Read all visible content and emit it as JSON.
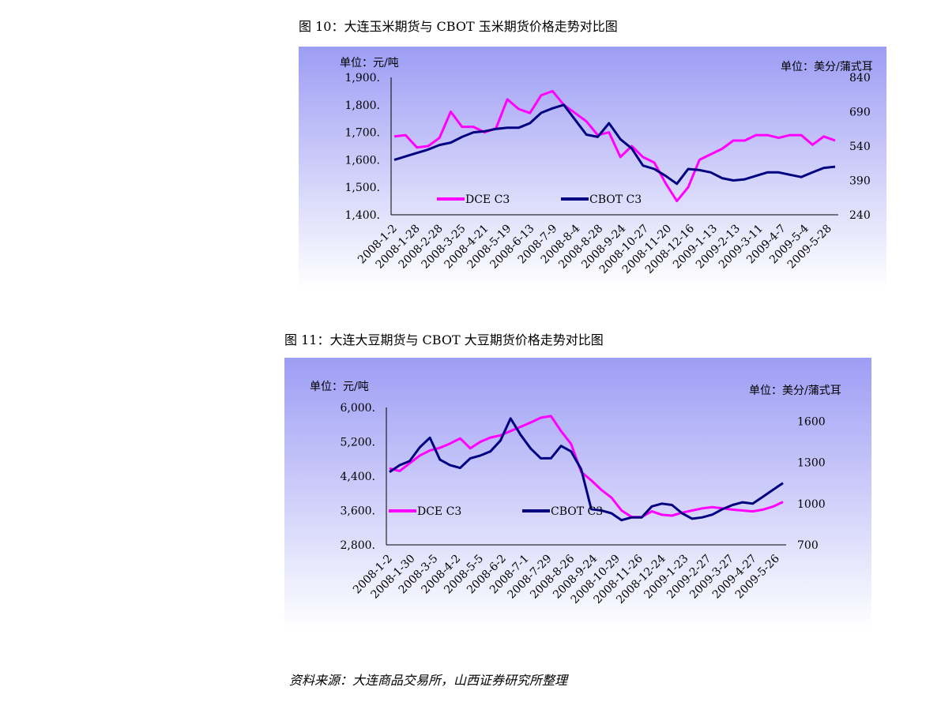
{
  "source_note": "资料来源：大连商品交易所，山西证券研究所整理",
  "chart_data": [
    {
      "type": "line",
      "figure_title": "图 10：大连玉米期货与 CBOT 玉米期货价格走势对比图",
      "y_left_unit": "单位：元/吨",
      "y_right_unit": "单位：美分/蒲式耳",
      "y_left_ticks": [
        "1,400.",
        "1,500.",
        "1,600.",
        "1,700.",
        "1,800.",
        "1,900."
      ],
      "y_right_ticks": [
        "240",
        "390",
        "540",
        "690",
        "840"
      ],
      "ylim_left": [
        1400,
        1900
      ],
      "ylim_right": [
        240,
        840
      ],
      "x_ticks": [
        "2008-1-2",
        "2008-1-28",
        "2008-2-28",
        "2008-3-25",
        "2008-4-21",
        "2008-5-19",
        "2008-6-13",
        "2008-7-9",
        "2008-8-4",
        "2008-8-28",
        "2008-9-24",
        "2008-10-27",
        "2008-11-20",
        "2008-12-16",
        "2009-1-13",
        "2009-2-13",
        "2009-3-11",
        "2009-4-7",
        "2009-5-4",
        "2009-5-28"
      ],
      "legend_placement": "inside-bottom-left",
      "colors": {
        "plot_bg_top": "#9d9df5",
        "plot_bg_bottom": "#ffffff"
      },
      "series": [
        {
          "name": "DCE C3",
          "axis": "left",
          "color": "#ff00ff",
          "values": [
            1685,
            1690,
            1645,
            1650,
            1680,
            1775,
            1720,
            1720,
            1700,
            1715,
            1820,
            1785,
            1770,
            1835,
            1850,
            1800,
            1770,
            1740,
            1690,
            1700,
            1610,
            1650,
            1610,
            1590,
            1515,
            1450,
            1500,
            1600,
            1620,
            1640,
            1670,
            1670,
            1690,
            1690,
            1680,
            1690,
            1690,
            1655,
            1685,
            1670
          ]
        },
        {
          "name": "CBOT C3",
          "axis": "right",
          "color": "#000080",
          "values": [
            480,
            495,
            510,
            525,
            545,
            555,
            580,
            600,
            605,
            615,
            620,
            620,
            640,
            685,
            705,
            720,
            655,
            590,
            580,
            640,
            570,
            530,
            455,
            440,
            410,
            375,
            440,
            435,
            425,
            400,
            390,
            395,
            410,
            425,
            425,
            415,
            405,
            425,
            445,
            450
          ]
        }
      ]
    },
    {
      "type": "line",
      "figure_title": "图 11：大连大豆期货与 CBOT 大豆期货价格走势对比图",
      "y_left_unit": "单位：元/吨",
      "y_right_unit": "单位：美分/蒲式耳",
      "y_left_ticks": [
        "2,800.",
        "3,600.",
        "4,400.",
        "5,200.",
        "6,000."
      ],
      "y_right_ticks": [
        "700",
        "1000",
        "1300",
        "1600"
      ],
      "ylim_left": [
        2800,
        6000
      ],
      "ylim_right": [
        700,
        1700
      ],
      "x_ticks": [
        "2008-1-2",
        "2008-1-30",
        "2008-3-5",
        "2008-4-2",
        "2008-5-5",
        "2008-6-2",
        "2008-7-1",
        "2008-7-29",
        "2008-8-26",
        "2008-9-24",
        "2008-10-29",
        "2008-11-26",
        "2008-12-24",
        "2009-1-23",
        "2009-2-27",
        "2009-3-27",
        "2009-4-27",
        "2009-5-26"
      ],
      "legend_placement": "inside-bottom-left",
      "colors": {
        "plot_bg_top": "#9d9df5",
        "plot_bg_bottom": "#ffffff"
      },
      "series": [
        {
          "name": "DCE C3",
          "axis": "left",
          "color": "#ff00ff",
          "values": [
            4580,
            4520,
            4700,
            4880,
            5000,
            5060,
            5160,
            5280,
            5050,
            5200,
            5300,
            5350,
            5450,
            5550,
            5650,
            5760,
            5800,
            5450,
            5150,
            4500,
            4300,
            4080,
            3900,
            3600,
            3450,
            3450,
            3580,
            3500,
            3480,
            3550,
            3600,
            3650,
            3680,
            3650,
            3620,
            3600,
            3580,
            3620,
            3690,
            3800
          ]
        },
        {
          "name": "CBOT C3",
          "axis": "right",
          "color": "#000080",
          "values": [
            1230,
            1280,
            1310,
            1410,
            1480,
            1320,
            1280,
            1260,
            1330,
            1350,
            1380,
            1460,
            1620,
            1500,
            1400,
            1330,
            1330,
            1420,
            1380,
            1250,
            960,
            950,
            930,
            880,
            900,
            900,
            980,
            1000,
            990,
            930,
            890,
            900,
            920,
            960,
            990,
            1010,
            1000,
            1050,
            1100,
            1150
          ]
        }
      ]
    }
  ]
}
